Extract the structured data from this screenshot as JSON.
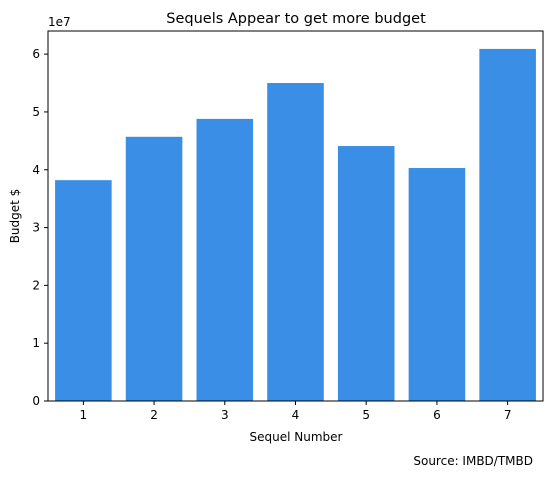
{
  "chart_data": {
    "type": "bar",
    "title": "Sequels Appear to get more budget",
    "xlabel": "Sequel Number",
    "ylabel": "Budget $",
    "y_multiplier_label": "1e7",
    "caption": "Source: IMBD/TMBD",
    "categories": [
      "1",
      "2",
      "3",
      "4",
      "5",
      "6",
      "7"
    ],
    "values": [
      38200000,
      45700000,
      48800000,
      55000000,
      44100000,
      40300000,
      60900000
    ],
    "ylim": [
      0,
      64000000
    ],
    "yticks": [
      0,
      10000000,
      20000000,
      30000000,
      40000000,
      50000000,
      60000000
    ],
    "ytick_labels": [
      "0",
      "1",
      "2",
      "3",
      "4",
      "5",
      "6"
    ],
    "grid": false,
    "bar_color": "#3a8ee6"
  }
}
